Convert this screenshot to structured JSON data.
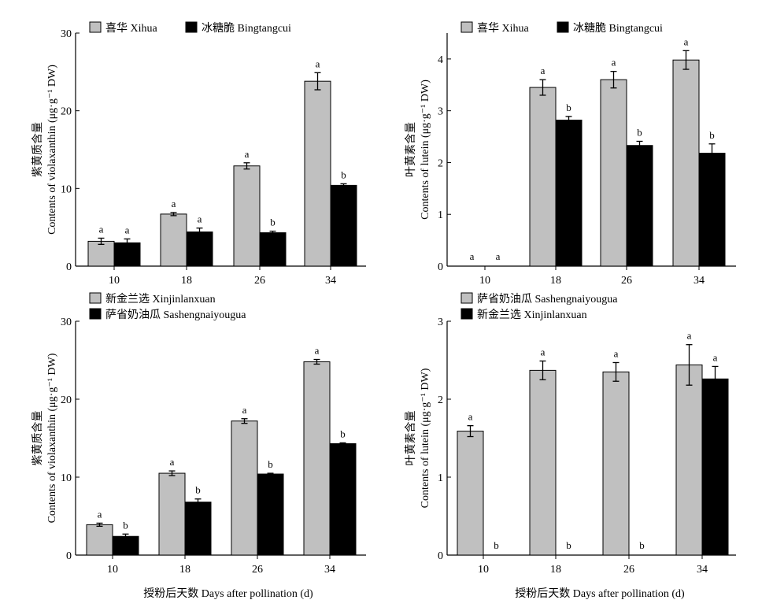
{
  "colors": {
    "series_a": "#c0c0c0",
    "series_b": "#000000"
  },
  "xaxis_title": "授粉后天数 Days after pollination (d)",
  "chart_data": [
    {
      "type": "bar",
      "categories": [
        "10",
        "18",
        "26",
        "34"
      ],
      "ylabel_cn": "紫黄质含量",
      "ylabel_en": "Contents of violaxanthin (μg·g⁻¹ DW)",
      "ylim": [
        0,
        30
      ],
      "yticks": [
        "0",
        "10",
        "20",
        "30"
      ],
      "legend": "top-left",
      "series": [
        {
          "name": "喜华 Xihua",
          "values": [
            3.2,
            6.7,
            12.9,
            23.8
          ],
          "errors": [
            0.4,
            0.2,
            0.4,
            1.1
          ],
          "sig": [
            "a",
            "a",
            "a",
            "a"
          ]
        },
        {
          "name": "冰糖脆 Bingtangcui",
          "values": [
            3.0,
            4.4,
            4.3,
            10.4
          ],
          "errors": [
            0.5,
            0.5,
            0.2,
            0.2
          ],
          "sig": [
            "a",
            "a",
            "b",
            "b"
          ]
        }
      ]
    },
    {
      "type": "bar",
      "categories": [
        "10",
        "18",
        "26",
        "34"
      ],
      "ylabel_cn": "叶黄素含量",
      "ylabel_en": "Contents of lutein (μg·g⁻¹ DW)",
      "ylim": [
        0,
        4.5
      ],
      "yticks": [
        "0",
        "1",
        "2",
        "3",
        "4"
      ],
      "legend": "top-left",
      "series": [
        {
          "name": "喜华 Xihua",
          "values": [
            0,
            3.45,
            3.6,
            3.98
          ],
          "errors": [
            0,
            0.15,
            0.16,
            0.18
          ],
          "sig": [
            "a",
            "a",
            "a",
            "a"
          ]
        },
        {
          "name": "冰糖脆 Bingtangcui",
          "values": [
            0,
            2.82,
            2.33,
            2.18
          ],
          "errors": [
            0,
            0.07,
            0.08,
            0.18
          ],
          "sig": [
            "a",
            "b",
            "b",
            "b"
          ]
        }
      ]
    },
    {
      "type": "bar",
      "categories": [
        "10",
        "18",
        "26",
        "34"
      ],
      "ylabel_cn": "紫黄质含量",
      "ylabel_en": "Contents of violaxanthin (μg·g⁻¹ DW)",
      "ylim": [
        0,
        30
      ],
      "yticks": [
        "0",
        "10",
        "20",
        "30"
      ],
      "legend": "top-left",
      "series": [
        {
          "name": "新金兰选 Xinjinlanxuan",
          "values": [
            3.9,
            10.5,
            17.2,
            24.8
          ],
          "errors": [
            0.2,
            0.3,
            0.3,
            0.3
          ],
          "sig": [
            "a",
            "a",
            "a",
            "a"
          ]
        },
        {
          "name": "萨省奶油瓜 Sashengnaiyougua",
          "values": [
            2.4,
            6.8,
            10.4,
            14.3
          ],
          "errors": [
            0.3,
            0.4,
            0.1,
            0.1
          ],
          "sig": [
            "b",
            "b",
            "b",
            "b"
          ]
        }
      ]
    },
    {
      "type": "bar",
      "categories": [
        "10",
        "18",
        "26",
        "34"
      ],
      "ylabel_cn": "叶黄素含量",
      "ylabel_en": "Contents of lutein (μg·g⁻¹ DW)",
      "ylim": [
        0,
        3
      ],
      "yticks": [
        "0",
        "1",
        "2",
        "3"
      ],
      "legend": "top-left",
      "series": [
        {
          "name": "萨省奶油瓜 Sashengnaiyougua",
          "values": [
            1.59,
            2.37,
            2.35,
            2.44
          ],
          "errors": [
            0.07,
            0.12,
            0.12,
            0.26
          ],
          "sig": [
            "a",
            "a",
            "a",
            "a"
          ]
        },
        {
          "name": "新金兰选 Xinjinlanxuan",
          "values": [
            0,
            0,
            0,
            2.26
          ],
          "errors": [
            0,
            0,
            0,
            0.16
          ],
          "sig": [
            "b",
            "b",
            "b",
            "a"
          ]
        }
      ]
    }
  ]
}
